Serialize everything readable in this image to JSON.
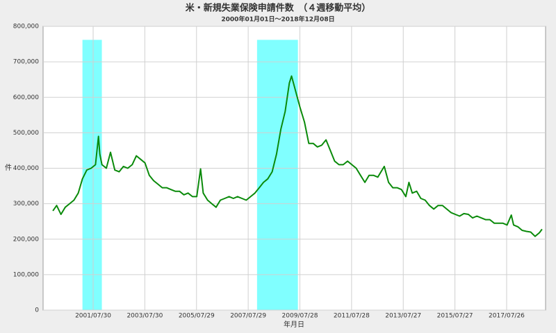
{
  "chart_data": {
    "type": "line",
    "title": "米・新規失業保険申請件数　（４週移動平均）",
    "subtitle": "2000年01月01日～2018年12月08日",
    "xlabel": "年月日",
    "ylabel": "件",
    "x": [
      "2000/01/08",
      "2000/03/01",
      "2000/05/01",
      "2000/07/01",
      "2000/09/01",
      "2000/11/01",
      "2001/01/01",
      "2001/03/01",
      "2001/05/01",
      "2001/07/01",
      "2001/09/01",
      "2001/10/13",
      "2001/11/01",
      "2001/12/01",
      "2002/02/01",
      "2002/04/01",
      "2002/06/01",
      "2002/08/01",
      "2002/10/01",
      "2002/12/01",
      "2003/02/01",
      "2003/04/01",
      "2003/06/01",
      "2003/08/01",
      "2003/10/01",
      "2003/12/01",
      "2004/02/01",
      "2004/04/01",
      "2004/06/01",
      "2004/08/01",
      "2004/10/01",
      "2004/12/01",
      "2005/02/01",
      "2005/04/01",
      "2005/06/01",
      "2005/08/01",
      "2005/09/24",
      "2005/11/01",
      "2006/01/01",
      "2006/03/01",
      "2006/05/01",
      "2006/07/01",
      "2006/09/01",
      "2006/11/01",
      "2007/01/01",
      "2007/03/01",
      "2007/05/01",
      "2007/07/01",
      "2007/09/01",
      "2007/11/01",
      "2008/01/01",
      "2008/03/01",
      "2008/05/01",
      "2008/07/01",
      "2008/09/01",
      "2008/11/01",
      "2009/01/01",
      "2009/03/01",
      "2009/04/01",
      "2009/06/01",
      "2009/08/01",
      "2009/10/01",
      "2009/12/01",
      "2010/02/01",
      "2010/04/01",
      "2010/06/01",
      "2010/08/01",
      "2010/10/01",
      "2010/12/01",
      "2011/02/01",
      "2011/04/01",
      "2011/06/01",
      "2011/08/01",
      "2011/10/01",
      "2011/12/01",
      "2012/02/01",
      "2012/04/01",
      "2012/06/01",
      "2012/08/01",
      "2012/11/01",
      "2013/01/01",
      "2013/03/01",
      "2013/05/01",
      "2013/07/01",
      "2013/09/01",
      "2013/10/15",
      "2013/12/01",
      "2014/02/01",
      "2014/04/01",
      "2014/06/01",
      "2014/08/01",
      "2014/10/01",
      "2014/12/01",
      "2015/02/01",
      "2015/04/01",
      "2015/06/01",
      "2015/08/01",
      "2015/10/01",
      "2015/12/01",
      "2016/02/01",
      "2016/04/01",
      "2016/06/01",
      "2016/08/01",
      "2016/10/01",
      "2016/12/01",
      "2017/02/01",
      "2017/04/01",
      "2017/06/01",
      "2017/08/01",
      "2017/09/30",
      "2017/11/01",
      "2018/01/01",
      "2018/03/01",
      "2018/05/01",
      "2018/07/01",
      "2018/09/01",
      "2018/11/01",
      "2018/12/08"
    ],
    "series": [
      {
        "name": "件",
        "color": "#0a8a0a",
        "values": [
          280000,
          295000,
          270000,
          290000,
          300000,
          310000,
          330000,
          370000,
          395000,
          400000,
          410000,
          490000,
          440000,
          410000,
          400000,
          445000,
          395000,
          390000,
          405000,
          400000,
          410000,
          435000,
          425000,
          415000,
          380000,
          365000,
          355000,
          345000,
          345000,
          340000,
          335000,
          335000,
          325000,
          330000,
          320000,
          320000,
          398000,
          330000,
          310000,
          300000,
          290000,
          310000,
          315000,
          320000,
          315000,
          320000,
          315000,
          310000,
          320000,
          330000,
          345000,
          360000,
          370000,
          390000,
          440000,
          510000,
          560000,
          640000,
          660000,
          615000,
          570000,
          530000,
          470000,
          470000,
          460000,
          465000,
          480000,
          450000,
          420000,
          410000,
          410000,
          420000,
          410000,
          400000,
          380000,
          360000,
          380000,
          380000,
          375000,
          405000,
          360000,
          345000,
          345000,
          340000,
          320000,
          360000,
          330000,
          335000,
          315000,
          310000,
          295000,
          285000,
          295000,
          295000,
          285000,
          275000,
          270000,
          265000,
          272000,
          270000,
          260000,
          265000,
          260000,
          255000,
          255000,
          245000,
          245000,
          245000,
          240000,
          268000,
          240000,
          235000,
          225000,
          222000,
          220000,
          208000,
          218000,
          228000
        ]
      }
    ],
    "shaded_regions": [
      {
        "start": "2001/03/01",
        "end": "2001/11/30",
        "top": 762000
      },
      {
        "start": "2007/12/01",
        "end": "2009/06/30",
        "top": 762000
      }
    ],
    "shade_color": "#80ffff",
    "xlim": [
      "1999/08/23",
      "2019/01/27"
    ],
    "xticks": [
      "2001/07/30",
      "2003/07/30",
      "2005/07/29",
      "2007/07/29",
      "2009/07/28",
      "2011/07/28",
      "2013/07/27",
      "2015/07/27",
      "2017/07/26"
    ],
    "ylim": [
      0,
      800000
    ],
    "yticks": [
      0,
      {
        "value": 100000,
        "label": "100,000"
      },
      {
        "value": 200000,
        "label": "200,000"
      },
      {
        "value": 300000,
        "label": "300,000"
      },
      {
        "value": 400000,
        "label": "400,000"
      },
      {
        "value": 500000,
        "label": "500,000"
      },
      {
        "value": 600000,
        "label": "600,000"
      },
      {
        "value": 700000,
        "label": "700,000"
      },
      {
        "value": 800000,
        "label": "800,000"
      }
    ],
    "grid": true
  }
}
